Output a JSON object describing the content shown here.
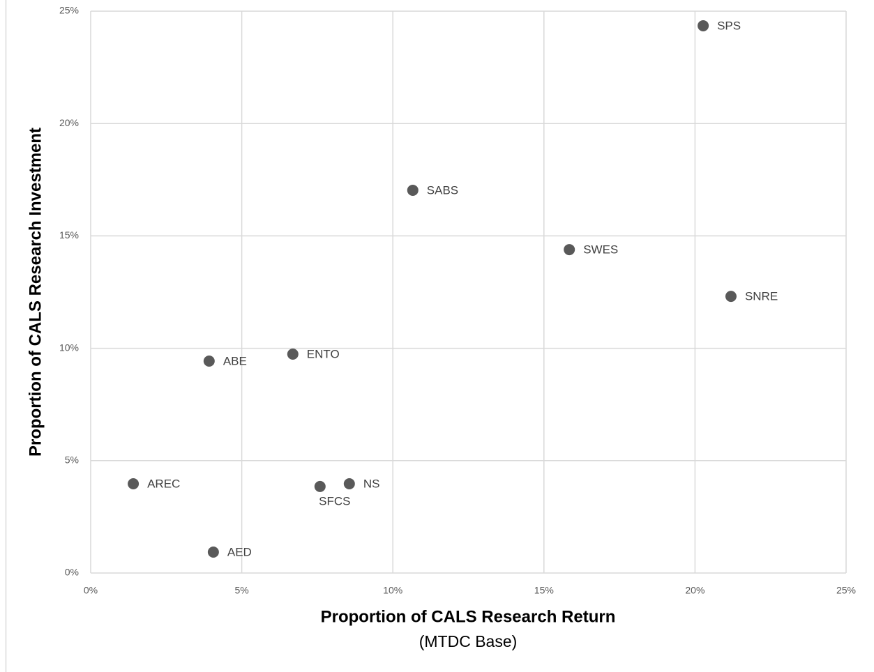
{
  "chart_data": {
    "type": "scatter",
    "x_label": "Proportion of CALS Research Return",
    "x_sublabel": "(MTDC Base)",
    "y_label": "Proportion of CALS Research Investment",
    "color": "#595959",
    "grid": true,
    "xlim": [
      0,
      25
    ],
    "ylim": [
      0,
      25
    ],
    "xticks": [
      {
        "value": 0,
        "label": "0%"
      },
      {
        "value": 5,
        "label": "5%"
      },
      {
        "value": 10,
        "label": "10%"
      },
      {
        "value": 15,
        "label": "15%"
      },
      {
        "value": 20,
        "label": "20%"
      },
      {
        "value": 25,
        "label": "25%"
      }
    ],
    "yticks": [
      {
        "value": 0,
        "label": "0%"
      },
      {
        "value": 5,
        "label": "5%"
      },
      {
        "value": 10,
        "label": "10%"
      },
      {
        "value": 15,
        "label": "15%"
      },
      {
        "value": 20,
        "label": "20%"
      },
      {
        "value": 25,
        "label": "25%"
      }
    ],
    "labels": [
      "SPS",
      "SABS",
      "SWES",
      "SNRE",
      "ENTO",
      "ABE",
      "AREC",
      "SFCS",
      "NS",
      "AED"
    ],
    "x": [
      20.27,
      10.66,
      15.84,
      21.19,
      6.69,
      3.92,
      1.41,
      7.59,
      8.56,
      4.06
    ],
    "y": [
      24.35,
      17.03,
      14.39,
      12.31,
      9.74,
      9.43,
      3.97,
      3.85,
      3.97,
      0.93
    ]
  }
}
